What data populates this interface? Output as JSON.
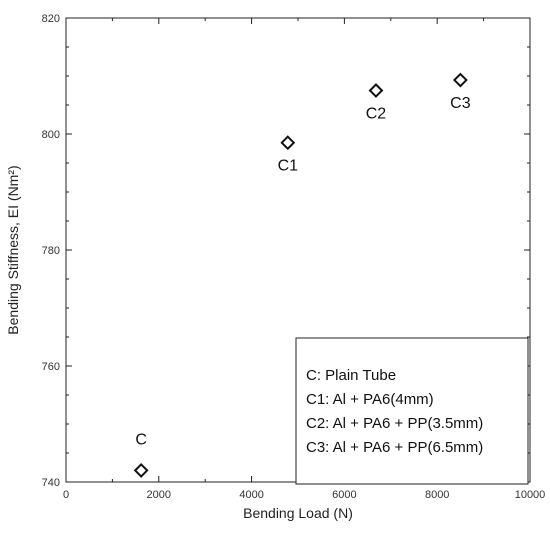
{
  "chart_data": {
    "type": "scatter",
    "title": "",
    "xlabel": "Bending Load (N)",
    "ylabel": "Bending Stiffness, EI (Nm²)",
    "xlim": [
      0,
      10000
    ],
    "ylim": [
      740,
      820
    ],
    "x_ticks": [
      0,
      2000,
      4000,
      6000,
      8000,
      10000
    ],
    "x_tick_labels": [
      "0",
      "2000",
      "4000",
      "6000",
      "8000",
      "10000"
    ],
    "y_ticks": [
      740,
      760,
      780,
      800,
      820
    ],
    "y_tick_labels": [
      "740",
      "760",
      "780",
      "800",
      "820"
    ],
    "grid": false,
    "legend_position": "bottom-right",
    "points": [
      {
        "label": "C",
        "x": 1620,
        "y": 742
      },
      {
        "label": "C1",
        "x": 4780,
        "y": 798.5
      },
      {
        "label": "C2",
        "x": 6680,
        "y": 807.5
      },
      {
        "label": "C3",
        "x": 8500,
        "y": 809.3
      }
    ],
    "legend_entries": [
      "C: Plain Tube",
      "C1: Al + PA6(4mm)",
      "C2: Al + PA6 + PP(3.5mm)",
      "C3: Al + PA6 + PP(6.5mm)"
    ]
  }
}
